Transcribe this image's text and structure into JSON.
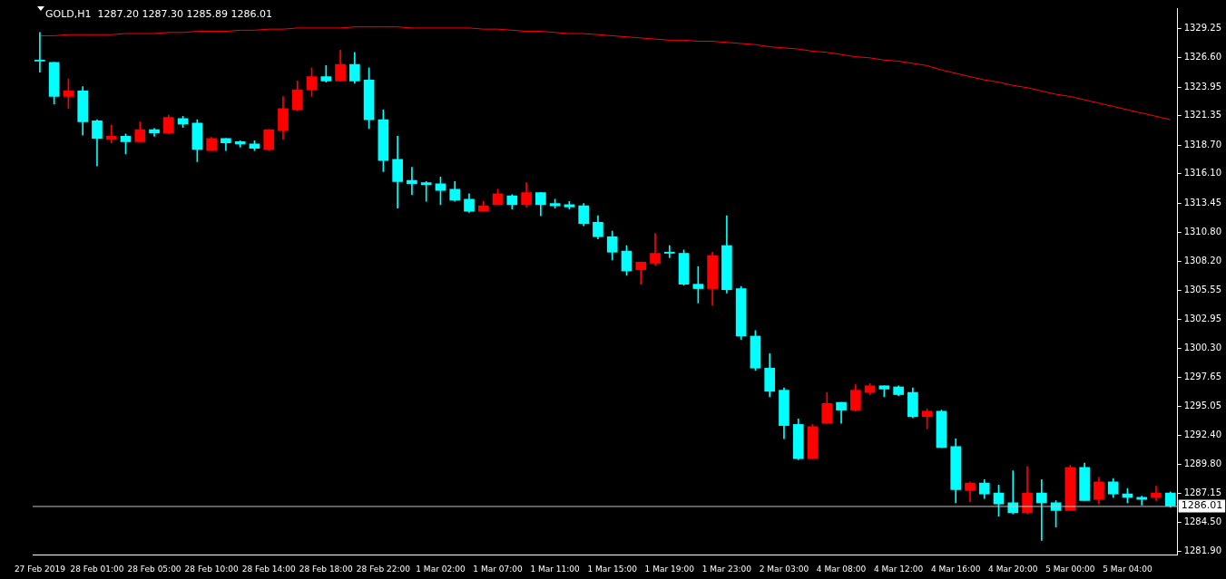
{
  "chart_data": {
    "type": "candlestick",
    "title": "GOLD,H1  1287.20 1287.30 1285.89 1286.01",
    "categories": [
      "27 Feb 2019",
      null,
      null,
      null,
      "28 Feb 01:00",
      null,
      null,
      null,
      "28 Feb 05:00",
      null,
      null,
      null,
      "28 Feb 10:00",
      null,
      null,
      null,
      "28 Feb 14:00",
      null,
      null,
      null,
      "28 Feb 18:00",
      null,
      null,
      null,
      "28 Feb 22:00",
      null,
      null,
      null,
      "1 Mar 02:00",
      null,
      null,
      null,
      "1 Mar 07:00",
      null,
      null,
      null,
      "1 Mar 11:00",
      null,
      null,
      null,
      "1 Mar 15:00",
      null,
      null,
      null,
      "1 Mar 19:00",
      null,
      null,
      null,
      "1 Mar 23:00",
      null,
      null,
      null,
      "2 Mar 03:00",
      null,
      null,
      null,
      "4 Mar 08:00",
      null,
      null,
      null,
      "4 Mar 12:00",
      null,
      null,
      null,
      "4 Mar 16:00",
      null,
      null,
      null,
      "4 Mar 20:00",
      null,
      null,
      null,
      "5 Mar 00:00",
      null,
      null,
      null,
      "5 Mar 04:00",
      null,
      null,
      null
    ],
    "ohlc": [
      [
        1326.4,
        1328.9,
        1325.3,
        1326.3
      ],
      [
        1326.2,
        1326.2,
        1322.4,
        1323.1
      ],
      [
        1323.1,
        1324.7,
        1322.0,
        1323.6
      ],
      [
        1323.6,
        1324.0,
        1319.6,
        1320.8
      ],
      [
        1320.9,
        1321.0,
        1316.8,
        1319.3
      ],
      [
        1319.2,
        1320.5,
        1318.9,
        1319.5
      ],
      [
        1319.5,
        1319.7,
        1317.9,
        1319.0
      ],
      [
        1319.0,
        1320.8,
        1319.0,
        1320.1
      ],
      [
        1320.1,
        1320.2,
        1319.5,
        1319.8
      ],
      [
        1319.8,
        1321.4,
        1319.7,
        1321.2
      ],
      [
        1321.1,
        1321.3,
        1320.3,
        1320.6
      ],
      [
        1320.7,
        1321.0,
        1317.2,
        1318.3
      ],
      [
        1318.2,
        1319.4,
        1318.2,
        1319.3
      ],
      [
        1319.3,
        1319.3,
        1318.2,
        1318.9
      ],
      [
        1319.0,
        1319.1,
        1318.5,
        1318.8
      ],
      [
        1318.8,
        1319.1,
        1318.2,
        1318.4
      ],
      [
        1318.3,
        1320.1,
        1318.2,
        1320.1
      ],
      [
        1320.0,
        1323.1,
        1319.2,
        1322.0
      ],
      [
        1321.9,
        1324.5,
        1321.8,
        1323.7
      ],
      [
        1323.7,
        1325.7,
        1323.1,
        1324.9
      ],
      [
        1324.9,
        1325.9,
        1324.4,
        1324.5
      ],
      [
        1324.5,
        1327.3,
        1324.5,
        1326.0
      ],
      [
        1326.0,
        1327.1,
        1324.3,
        1324.5
      ],
      [
        1324.6,
        1325.7,
        1320.2,
        1321.0
      ],
      [
        1321.0,
        1321.9,
        1316.3,
        1317.3
      ],
      [
        1317.4,
        1319.5,
        1313.0,
        1315.4
      ],
      [
        1315.5,
        1316.7,
        1314.2,
        1315.2
      ],
      [
        1315.3,
        1315.4,
        1313.6,
        1315.1
      ],
      [
        1315.2,
        1315.8,
        1313.3,
        1314.6
      ],
      [
        1314.7,
        1315.4,
        1313.6,
        1313.7
      ],
      [
        1313.8,
        1314.3,
        1312.6,
        1312.7
      ],
      [
        1312.7,
        1313.6,
        1312.7,
        1313.2
      ],
      [
        1313.3,
        1314.7,
        1313.3,
        1314.3
      ],
      [
        1314.1,
        1314.2,
        1312.9,
        1313.3
      ],
      [
        1313.3,
        1315.3,
        1313.1,
        1314.4
      ],
      [
        1314.4,
        1314.4,
        1312.3,
        1313.3
      ],
      [
        1313.4,
        1313.8,
        1313.0,
        1313.2
      ],
      [
        1313.3,
        1313.6,
        1312.9,
        1313.1
      ],
      [
        1313.2,
        1313.4,
        1311.4,
        1311.6
      ],
      [
        1311.7,
        1312.3,
        1310.2,
        1310.4
      ],
      [
        1310.4,
        1310.9,
        1308.3,
        1309.0
      ],
      [
        1309.1,
        1309.6,
        1306.9,
        1307.3
      ],
      [
        1307.4,
        1308.1,
        1306.1,
        1308.1
      ],
      [
        1308.0,
        1310.7,
        1307.8,
        1308.9
      ],
      [
        1309.0,
        1309.6,
        1308.5,
        1308.9
      ],
      [
        1308.9,
        1309.2,
        1306.0,
        1306.1
      ],
      [
        1306.1,
        1307.7,
        1304.4,
        1305.7
      ],
      [
        1305.7,
        1309.0,
        1304.2,
        1308.7
      ],
      [
        1309.6,
        1312.3,
        1305.3,
        1305.6
      ],
      [
        1305.7,
        1305.9,
        1301.1,
        1301.4
      ],
      [
        1301.4,
        1301.9,
        1298.3,
        1298.5
      ],
      [
        1298.5,
        1299.8,
        1295.9,
        1296.4
      ],
      [
        1296.5,
        1296.7,
        1292.1,
        1293.3
      ],
      [
        1293.4,
        1293.9,
        1290.2,
        1290.3
      ],
      [
        1290.3,
        1293.4,
        1290.3,
        1293.2
      ],
      [
        1293.5,
        1296.3,
        1293.5,
        1295.3
      ],
      [
        1295.4,
        1295.4,
        1293.5,
        1294.7
      ],
      [
        1294.7,
        1297.0,
        1294.6,
        1296.5
      ],
      [
        1296.3,
        1297.1,
        1296.1,
        1296.9
      ],
      [
        1296.9,
        1296.9,
        1295.9,
        1296.6
      ],
      [
        1296.8,
        1296.9,
        1296.0,
        1296.1
      ],
      [
        1296.3,
        1296.7,
        1294.0,
        1294.1
      ],
      [
        1294.1,
        1294.8,
        1293.0,
        1294.6
      ],
      [
        1294.6,
        1294.7,
        1291.3,
        1291.3
      ],
      [
        1291.4,
        1292.1,
        1286.3,
        1287.5
      ],
      [
        1287.4,
        1288.2,
        1286.4,
        1288.1
      ],
      [
        1288.1,
        1288.4,
        1286.7,
        1287.1
      ],
      [
        1287.2,
        1287.9,
        1285.1,
        1286.2
      ],
      [
        1286.3,
        1289.2,
        1285.3,
        1285.4
      ],
      [
        1285.4,
        1289.6,
        1285.3,
        1287.2
      ],
      [
        1287.2,
        1288.4,
        1282.9,
        1286.3
      ],
      [
        1286.3,
        1286.5,
        1284.1,
        1285.6
      ],
      [
        1285.6,
        1289.7,
        1285.6,
        1289.5
      ],
      [
        1289.5,
        1289.9,
        1286.5,
        1286.5
      ],
      [
        1286.6,
        1288.6,
        1286.2,
        1288.2
      ],
      [
        1288.2,
        1288.5,
        1286.8,
        1287.1
      ],
      [
        1287.1,
        1287.6,
        1286.3,
        1286.8
      ],
      [
        1286.8,
        1286.9,
        1286.1,
        1286.6
      ],
      [
        1286.8,
        1287.8,
        1286.5,
        1287.2
      ],
      [
        1287.2,
        1287.3,
        1285.89,
        1286.01
      ]
    ],
    "colors": [
      "#00ffff",
      "#00ffff",
      "#ff0000",
      "#00ffff",
      "#00ffff",
      "#ff0000",
      "#00ffff",
      "#ff0000",
      "#00ffff",
      "#ff0000",
      "#00ffff",
      "#00ffff",
      "#ff0000",
      "#00ffff",
      "#00ffff",
      "#00ffff",
      "#ff0000",
      "#ff0000",
      "#ff0000",
      "#ff0000",
      "#00ffff",
      "#ff0000",
      "#00ffff",
      "#00ffff",
      "#00ffff",
      "#00ffff",
      "#00ffff",
      "#00ffff",
      "#00ffff",
      "#00ffff",
      "#00ffff",
      "#ff0000",
      "#ff0000",
      "#00ffff",
      "#ff0000",
      "#00ffff",
      "#00ffff",
      "#00ffff",
      "#00ffff",
      "#00ffff",
      "#00ffff",
      "#00ffff",
      "#ff0000",
      "#ff0000",
      "#00ffff",
      "#00ffff",
      "#00ffff",
      "#ff0000",
      "#00ffff",
      "#00ffff",
      "#00ffff",
      "#00ffff",
      "#00ffff",
      "#00ffff",
      "#ff0000",
      "#ff0000",
      "#00ffff",
      "#ff0000",
      "#ff0000",
      "#00ffff",
      "#00ffff",
      "#00ffff",
      "#ff0000",
      "#00ffff",
      "#00ffff",
      "#ff0000",
      "#00ffff",
      "#00ffff",
      "#00ffff",
      "#ff0000",
      "#00ffff",
      "#00ffff",
      "#ff0000",
      "#00ffff",
      "#ff0000",
      "#00ffff",
      "#00ffff",
      "#00ffff",
      "#ff0000",
      "#00ffff"
    ],
    "series": [
      {
        "type": "line",
        "color": "#ff0000",
        "values": [
          1328.6,
          1328.6,
          1328.7,
          1328.7,
          1328.7,
          1328.7,
          1328.8,
          1328.8,
          1328.8,
          1328.9,
          1328.9,
          1329.0,
          1329.0,
          1329.0,
          1329.1,
          1329.1,
          1329.2,
          1329.2,
          1329.3,
          1329.3,
          1329.3,
          1329.3,
          1329.4,
          1329.4,
          1329.4,
          1329.4,
          1329.3,
          1329.3,
          1329.3,
          1329.3,
          1329.3,
          1329.2,
          1329.2,
          1329.1,
          1329.0,
          1329.0,
          1328.9,
          1328.8,
          1328.8,
          1328.7,
          1328.6,
          1328.5,
          1328.4,
          1328.3,
          1328.2,
          1328.2,
          1328.1,
          1328.1,
          1328.0,
          1327.9,
          1327.8,
          1327.6,
          1327.5,
          1327.4,
          1327.2,
          1327.1,
          1326.9,
          1326.7,
          1326.6,
          1326.4,
          1326.3,
          1326.1,
          1325.9,
          1325.5,
          1325.2,
          1324.9,
          1324.6,
          1324.4,
          1324.1,
          1323.9,
          1323.6,
          1323.3,
          1323.1,
          1322.8,
          1322.5,
          1322.2,
          1321.9,
          1321.6,
          1321.3,
          1321.0
        ]
      }
    ],
    "ylim": [
      1281.6,
      1331.1
    ],
    "yticks": [
      {
        "value": 1281.9,
        "label": "1281.90"
      },
      {
        "value": 1284.5,
        "label": "1284.50"
      },
      {
        "value": 1287.15,
        "label": "1287.15"
      },
      {
        "value": 1289.8,
        "label": "1289.80"
      },
      {
        "value": 1292.4,
        "label": "1292.40"
      },
      {
        "value": 1295.05,
        "label": "1295.05"
      },
      {
        "value": 1297.65,
        "label": "1297.65"
      },
      {
        "value": 1300.3,
        "label": "1300.30"
      },
      {
        "value": 1302.95,
        "label": "1302.95"
      },
      {
        "value": 1305.55,
        "label": "1305.55"
      },
      {
        "value": 1308.2,
        "label": "1308.20"
      },
      {
        "value": 1310.8,
        "label": "1310.80"
      },
      {
        "value": 1313.45,
        "label": "1313.45"
      },
      {
        "value": 1316.1,
        "label": "1316.10"
      },
      {
        "value": 1318.7,
        "label": "1318.70"
      },
      {
        "value": 1321.35,
        "label": "1321.35"
      },
      {
        "value": 1323.95,
        "label": "1323.95"
      },
      {
        "value": 1326.6,
        "label": "1326.60"
      },
      {
        "value": 1329.25,
        "label": "1329.25"
      }
    ],
    "ref_lines": [
      {
        "axis": "y",
        "value": 1286.01,
        "label": "1286.01",
        "color": "#c0c0c0"
      }
    ]
  }
}
